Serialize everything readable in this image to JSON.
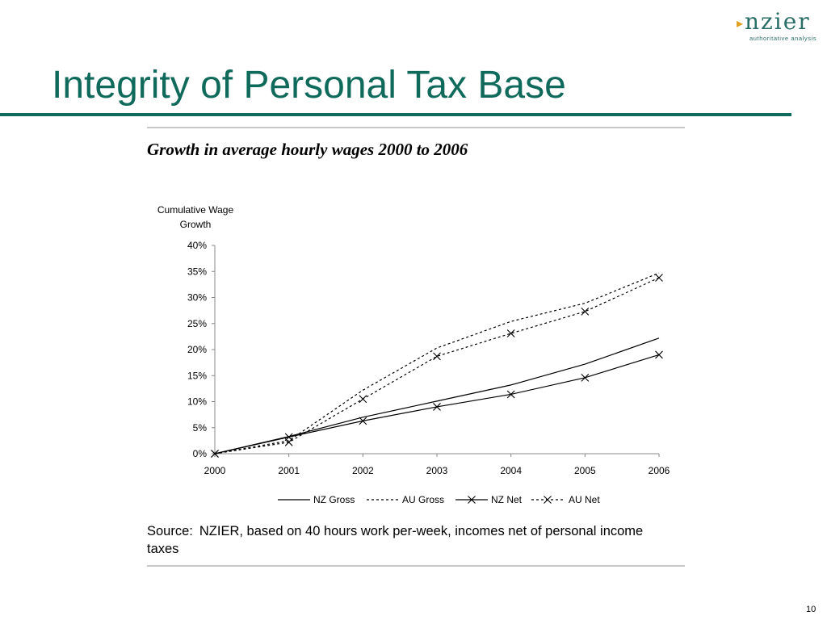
{
  "logo": {
    "name": "nzier",
    "tagline": "authoritative analysis"
  },
  "slide": {
    "title": "Integrity of Personal Tax Base",
    "chart_title": "Growth in average hourly wages 2000 to 2006",
    "source_label": "Source:",
    "source_text": "NZIER, based on 40 hours work per-week, incomes net of personal income taxes",
    "page_number": "10"
  },
  "chart_data": {
    "type": "line",
    "title": "Growth in average hourly wages 2000 to 2006",
    "ylabel_lines": [
      "Cumulative Wage",
      "Growth"
    ],
    "xlabel": "",
    "categories": [
      "2000",
      "2001",
      "2002",
      "2003",
      "2004",
      "2005",
      "2006"
    ],
    "yticks": [
      "0%",
      "5%",
      "10%",
      "15%",
      "20%",
      "25%",
      "30%",
      "35%",
      "40%"
    ],
    "ylim": [
      0,
      40
    ],
    "grid": false,
    "legend_position": "bottom",
    "series": [
      {
        "name": "NZ Gross",
        "values": [
          0,
          3.3,
          7.0,
          10.1,
          13.2,
          17.2,
          22.2
        ],
        "line": "solid",
        "marker": "none",
        "color": "#000000"
      },
      {
        "name": "AU Gross",
        "values": [
          0,
          2.5,
          12.2,
          20.3,
          25.4,
          28.9,
          34.7
        ],
        "line": "dotted",
        "marker": "none",
        "color": "#000000"
      },
      {
        "name": "NZ Net",
        "values": [
          0,
          3.2,
          6.3,
          9.0,
          11.4,
          14.6,
          19.0
        ],
        "line": "solid",
        "marker": "x",
        "color": "#000000"
      },
      {
        "name": "AU Net",
        "values": [
          0,
          2.2,
          10.5,
          18.7,
          23.1,
          27.3,
          33.8
        ],
        "line": "dotted",
        "marker": "x",
        "color": "#000000"
      }
    ]
  }
}
